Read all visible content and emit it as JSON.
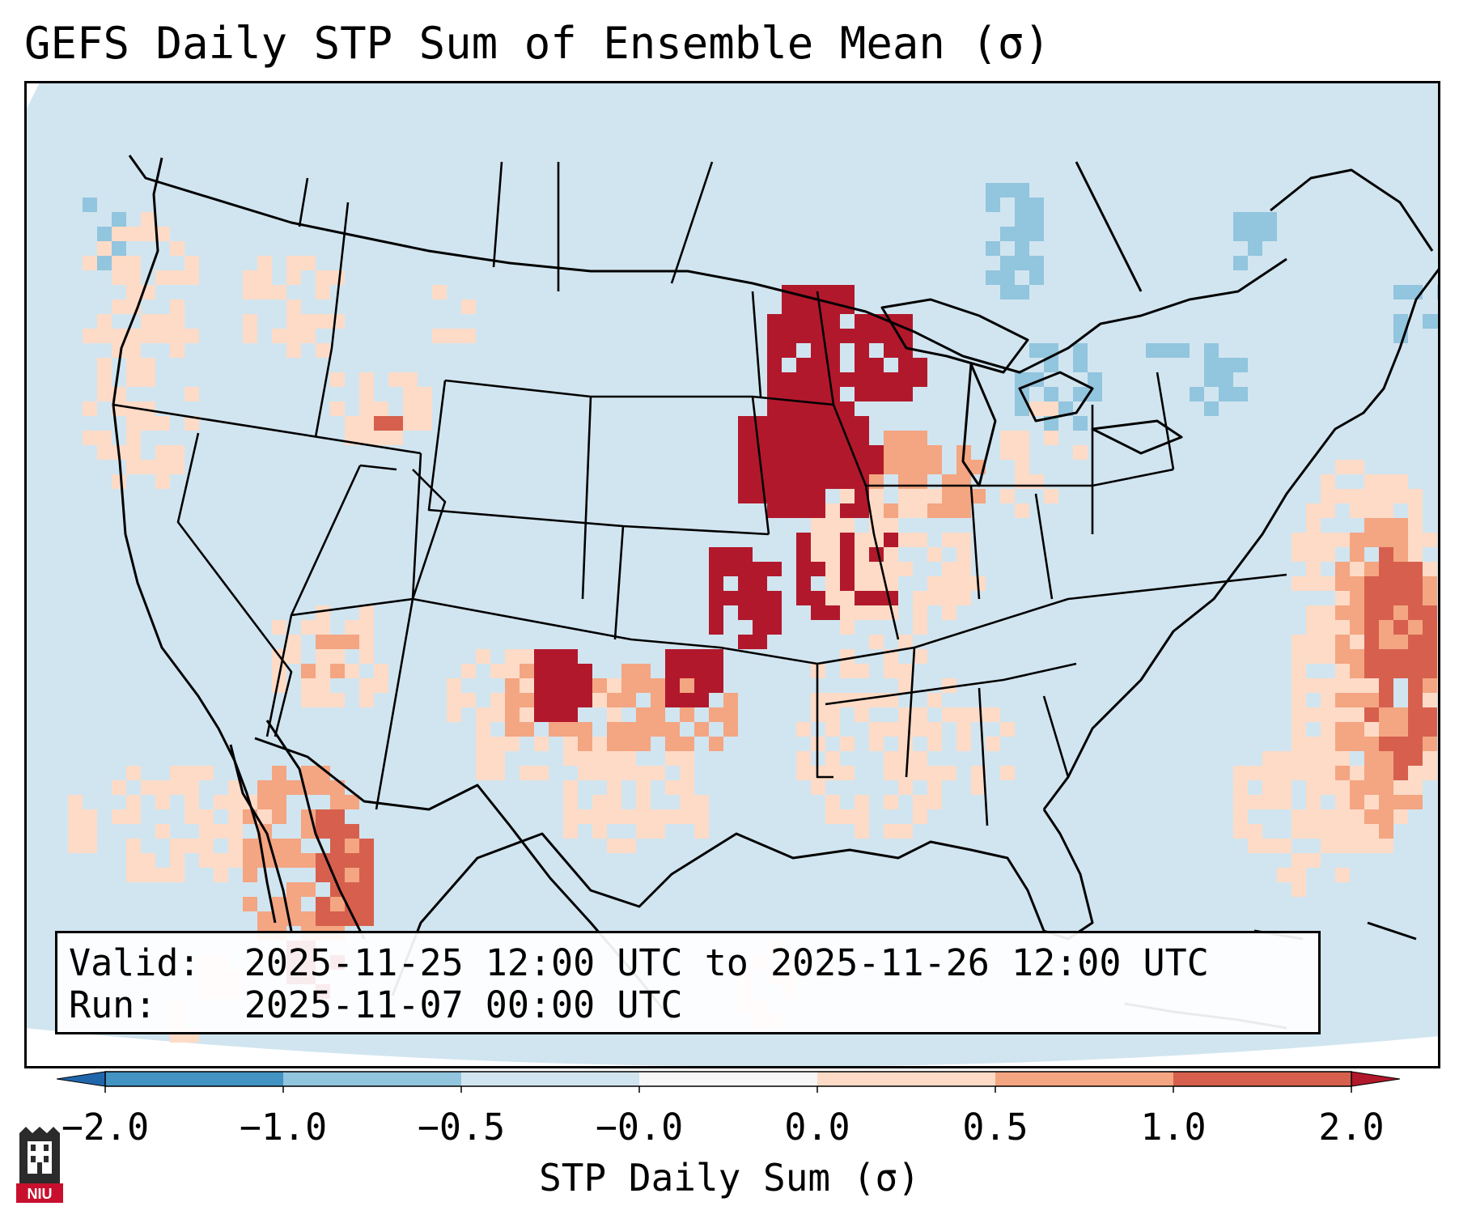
{
  "title": "GEFS Daily STP Sum of Ensemble Mean (σ)",
  "info": {
    "valid_label": "Valid:",
    "valid_value": "2025-11-25 12:00 UTC to 2025-11-26 12:00 UTC",
    "run_label": "Run:",
    "run_value": "2025-11-07 00:00 UTC"
  },
  "colorbar": {
    "label": "STP Daily Sum (σ)",
    "ticks": [
      "−2.0",
      "−1.0",
      "−0.5",
      "−0.0",
      "0.0",
      "0.5",
      "1.0",
      "2.0"
    ],
    "bins": [
      {
        "range": "<-2.0",
        "color": "#2166ac"
      },
      {
        "range": "-2.0 to -1.0",
        "color": "#4393c3"
      },
      {
        "range": "-1.0 to -0.5",
        "color": "#92c5de"
      },
      {
        "range": "-0.5 to -0.0",
        "color": "#d1e5f0"
      },
      {
        "range": "-0.0 to 0.0",
        "color": "#f7f7f7"
      },
      {
        "range": "0.0 to 0.5",
        "color": "#fddbc7"
      },
      {
        "range": "0.5 to 1.0",
        "color": "#f4a582"
      },
      {
        "range": "1.0 to 2.0",
        "color": "#d6604d"
      },
      {
        "range": ">2.0",
        "color": "#b2182b"
      }
    ]
  },
  "map": {
    "background_color": "#d1e5f0",
    "regions": [
      {
        "name": "Upper Midwest (MN/IA/WI)",
        "category": ">2.0"
      },
      {
        "name": "Iowa / Missouri corridor",
        "category": ">2.0"
      },
      {
        "name": "Southern Plains (TX Panhandle / OK)",
        "category": ">2.0"
      },
      {
        "name": "Northwest Mexico",
        "category": "1.0 to 2.0"
      },
      {
        "name": "Western Atlantic",
        "category": "1.0 to 2.0"
      },
      {
        "name": "Great Lakes / Northeast",
        "category": "-1.0 to -0.5"
      }
    ]
  },
  "logo": {
    "text": "NIU"
  }
}
